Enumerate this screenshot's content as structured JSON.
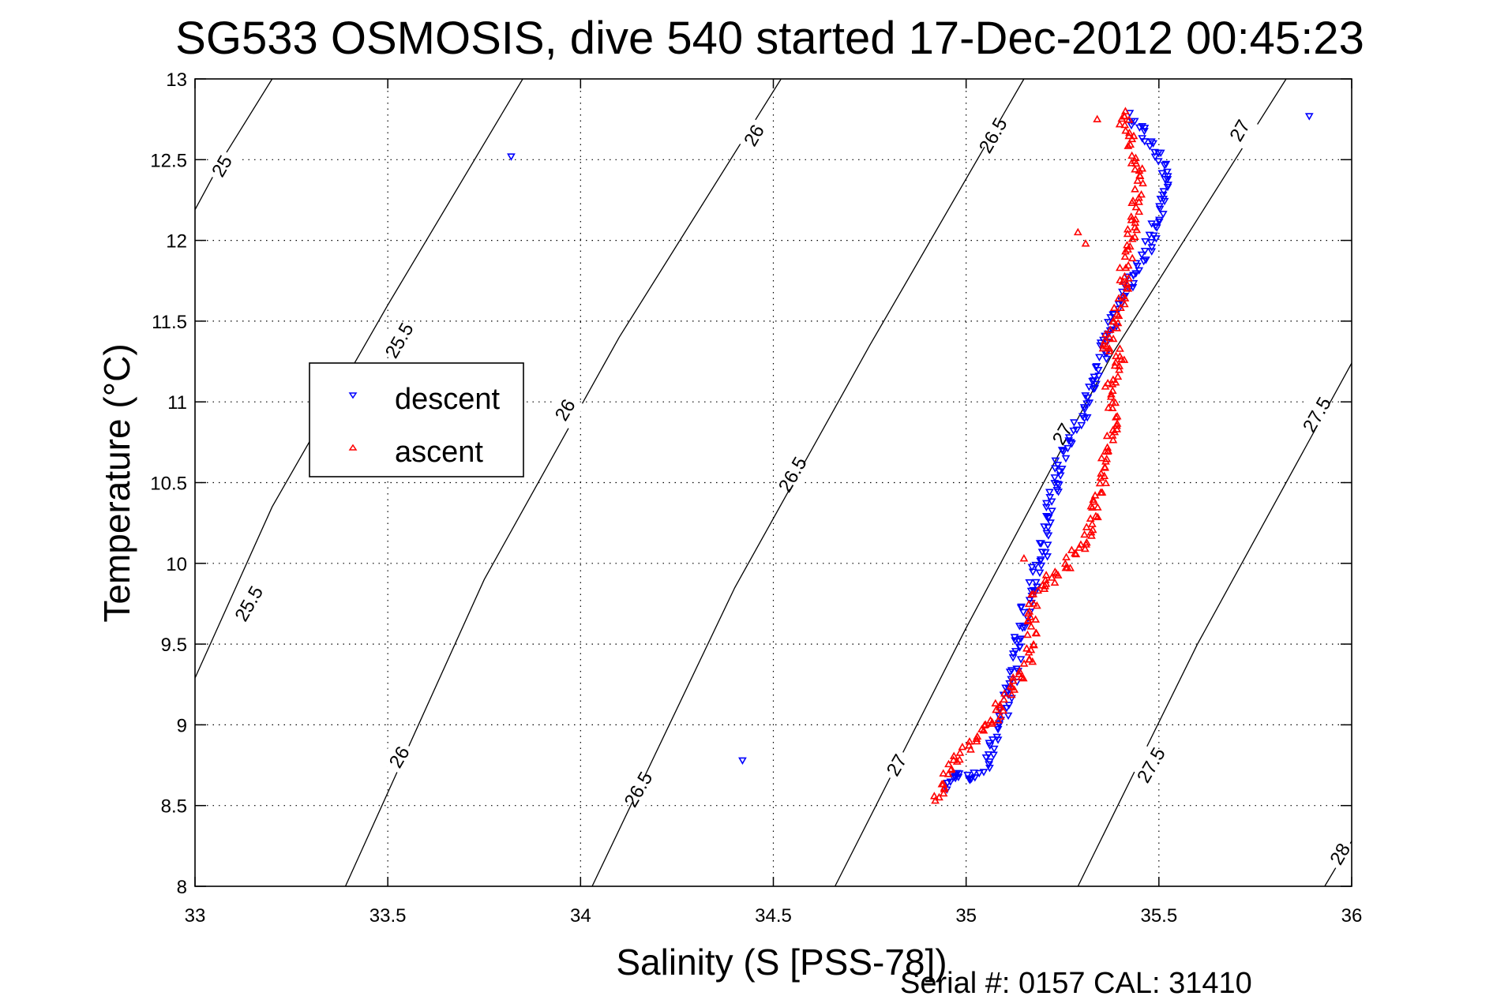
{
  "chart_data": {
    "type": "scatter",
    "title": "SG533 OSMOSIS, dive 540 started 17-Dec-2012 00:45:23",
    "xlabel": "Salinity (S [PSS-78])",
    "ylabel": "Temperature (°C)",
    "footer": "Serial #: 0157  CAL: 31410",
    "xlim": [
      33,
      36
    ],
    "ylim": [
      8,
      13
    ],
    "grid": true,
    "x_ticks": [
      33,
      33.5,
      34,
      34.5,
      35,
      35.5,
      36
    ],
    "x_tick_labels": [
      "33",
      "33.5",
      "34",
      "34.5",
      "35",
      "35.5",
      "36"
    ],
    "y_ticks": [
      8,
      8.5,
      9,
      9.5,
      10,
      10.5,
      11,
      11.5,
      12,
      12.5,
      13
    ],
    "y_tick_labels": [
      "8",
      "8.5",
      "9",
      "9.5",
      "10",
      "10.5",
      "11",
      "11.5",
      "12",
      "12.5",
      "13"
    ],
    "legend": {
      "placement": "center-left",
      "entries": [
        {
          "name": "descent",
          "color": "#0000ff",
          "marker": "triangle-down"
        },
        {
          "name": "ascent",
          "color": "#ff0000",
          "marker": "triangle-up"
        }
      ]
    },
    "series": [
      {
        "name": "descent",
        "color": "#0000ff",
        "marker": "triangle-down",
        "path": [
          [
            35.42,
            12.78
          ],
          [
            35.45,
            12.7
          ],
          [
            35.47,
            12.63
          ],
          [
            35.5,
            12.51
          ],
          [
            35.52,
            12.36
          ],
          [
            35.51,
            12.22
          ],
          [
            35.49,
            12.07
          ],
          [
            35.47,
            11.95
          ],
          [
            35.45,
            11.83
          ],
          [
            35.42,
            11.72
          ],
          [
            35.4,
            11.63
          ],
          [
            35.37,
            11.44
          ],
          [
            35.35,
            11.24
          ],
          [
            35.32,
            11.04
          ],
          [
            35.29,
            10.85
          ],
          [
            35.25,
            10.7
          ],
          [
            35.23,
            10.46
          ],
          [
            35.21,
            10.25
          ],
          [
            35.2,
            10.07
          ],
          [
            35.17,
            9.87
          ],
          [
            35.14,
            9.58
          ],
          [
            35.13,
            9.33
          ],
          [
            35.1,
            9.09
          ],
          [
            35.07,
            8.89
          ],
          [
            35.04,
            8.7
          ],
          [
            35.0,
            8.65
          ],
          [
            34.97,
            8.71
          ],
          [
            34.95,
            8.6
          ]
        ],
        "outliers": [
          [
            33.82,
            12.52
          ],
          [
            35.89,
            12.77
          ],
          [
            34.42,
            8.78
          ]
        ]
      },
      {
        "name": "ascent",
        "color": "#ff0000",
        "marker": "triangle-up",
        "path": [
          [
            35.4,
            12.8
          ],
          [
            35.42,
            12.66
          ],
          [
            35.44,
            12.51
          ],
          [
            35.45,
            12.36
          ],
          [
            35.44,
            12.22
          ],
          [
            35.43,
            12.07
          ],
          [
            35.42,
            11.92
          ],
          [
            35.41,
            11.78
          ],
          [
            35.4,
            11.63
          ],
          [
            35.38,
            11.48
          ],
          [
            35.36,
            11.34
          ],
          [
            35.4,
            11.29
          ],
          [
            35.38,
            11.15
          ],
          [
            35.37,
            11.04
          ],
          [
            35.38,
            10.9
          ],
          [
            35.38,
            10.75
          ],
          [
            35.36,
            10.6
          ],
          [
            35.35,
            10.46
          ],
          [
            35.32,
            10.17
          ],
          [
            35.26,
            9.97
          ],
          [
            35.2,
            9.87
          ],
          [
            35.17,
            9.77
          ],
          [
            35.17,
            9.58
          ],
          [
            35.16,
            9.38
          ],
          [
            35.14,
            9.29
          ],
          [
            35.1,
            9.14
          ],
          [
            35.05,
            8.99
          ],
          [
            35.01,
            8.89
          ],
          [
            34.97,
            8.79
          ],
          [
            34.94,
            8.6
          ],
          [
            34.92,
            8.53
          ]
        ],
        "outliers": [
          [
            35.34,
            12.75
          ],
          [
            35.31,
            11.98
          ],
          [
            35.29,
            12.05
          ],
          [
            35.23,
            9.88
          ],
          [
            35.15,
            10.03
          ]
        ]
      }
    ],
    "contours": [
      {
        "level": "25",
        "points": [
          [
            33.0,
            12.19
          ],
          [
            33.07,
            12.5
          ],
          [
            33.2,
            13.0
          ]
        ],
        "labels": [
          [
            33.07,
            12.46
          ]
        ]
      },
      {
        "level": "25.5",
        "points": [
          [
            33.0,
            9.29
          ],
          [
            33.2,
            10.35
          ],
          [
            33.5,
            11.6
          ],
          [
            33.85,
            13.0
          ]
        ],
        "labels": [
          [
            33.14,
            9.75
          ],
          [
            33.53,
            11.38
          ]
        ]
      },
      {
        "level": "26",
        "points": [
          [
            33.39,
            8.0
          ],
          [
            33.75,
            9.9
          ],
          [
            34.1,
            11.4
          ],
          [
            34.52,
            13.0
          ]
        ],
        "labels": [
          [
            33.53,
            8.8
          ],
          [
            33.96,
            10.95
          ],
          [
            34.45,
            12.65
          ]
        ]
      },
      {
        "level": "26.5",
        "points": [
          [
            34.03,
            8.0
          ],
          [
            34.4,
            9.85
          ],
          [
            34.75,
            11.35
          ],
          [
            35.15,
            13.0
          ]
        ],
        "labels": [
          [
            34.15,
            8.6
          ],
          [
            34.55,
            10.55
          ],
          [
            35.07,
            12.65
          ]
        ]
      },
      {
        "level": "27",
        "points": [
          [
            34.66,
            8.0
          ],
          [
            35.0,
            9.6
          ],
          [
            35.38,
            11.3
          ],
          [
            35.83,
            13.0
          ]
        ],
        "labels": [
          [
            34.82,
            8.75
          ],
          [
            35.25,
            10.8
          ],
          [
            35.71,
            12.68
          ]
        ]
      },
      {
        "level": "27.5",
        "points": [
          [
            35.29,
            8.0
          ],
          [
            35.6,
            9.5
          ],
          [
            36.0,
            11.24
          ]
        ],
        "labels": [
          [
            35.48,
            8.75
          ],
          [
            35.91,
            10.92
          ]
        ]
      },
      {
        "level": "28",
        "points": [
          [
            35.93,
            8.0
          ],
          [
            36.0,
            8.28
          ]
        ],
        "labels": [
          [
            35.97,
            8.2
          ]
        ]
      }
    ]
  }
}
